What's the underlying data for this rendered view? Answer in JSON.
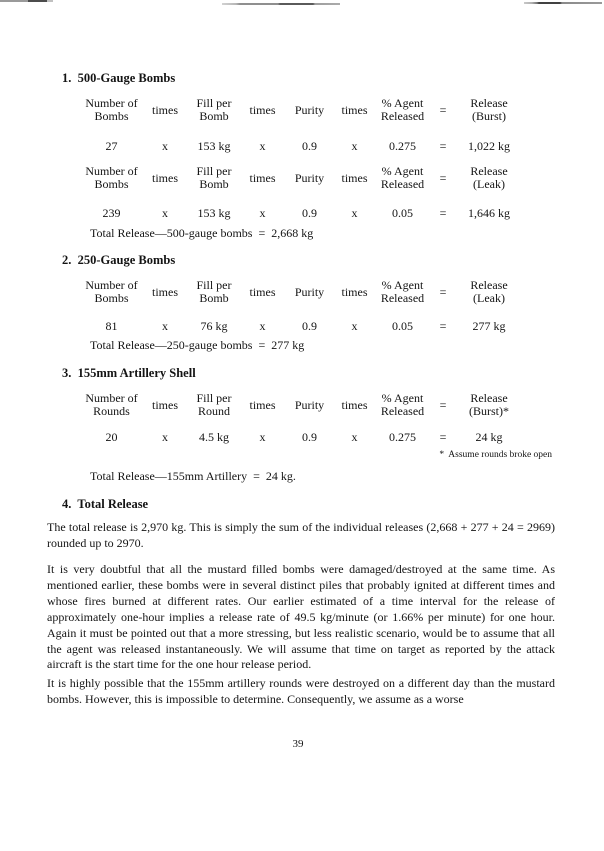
{
  "page_number": "39",
  "sections": [
    {
      "heading": "1.  500-Gauge Bombs",
      "tables": [
        {
          "headers": [
            "Number of Bombs",
            "times",
            "Fill per Bomb",
            "times",
            "Purity",
            "times",
            "% Agent Released",
            "=",
            "Release (Burst)"
          ],
          "values": [
            "27",
            "x",
            "153 kg",
            "x",
            "0.9",
            "x",
            "0.275",
            "=",
            "1,022 kg"
          ]
        },
        {
          "headers": [
            "Number of Bombs",
            "times",
            "Fill per Bomb",
            "times",
            "Purity",
            "times",
            "% Agent Released",
            "=",
            "Release (Leak)"
          ],
          "values": [
            "239",
            "x",
            "153 kg",
            "x",
            "0.9",
            "x",
            "0.05",
            "=",
            "1,646 kg"
          ]
        }
      ],
      "total": "Total Release—500-gauge bombs  =  2,668 kg"
    },
    {
      "heading": "2.  250-Gauge Bombs",
      "tables": [
        {
          "headers": [
            "Number of Bombs",
            "times",
            "Fill per Bomb",
            "times",
            "Purity",
            "times",
            "% Agent Released",
            "=",
            "Release (Leak)"
          ],
          "values": [
            "81",
            "x",
            "76 kg",
            "x",
            "0.9",
            "x",
            "0.05",
            "=",
            "277 kg"
          ]
        }
      ],
      "total": "Total Release—250-gauge bombs  =  277 kg"
    },
    {
      "heading": "3.  155mm Artillery Shell",
      "tables": [
        {
          "headers": [
            "Number of Rounds",
            "times",
            "Fill per Round",
            "times",
            "Purity",
            "times",
            "% Agent Released",
            "=",
            "Release (Burst)*"
          ],
          "values": [
            "20",
            "x",
            "4.5 kg",
            "x",
            "0.9",
            "x",
            "0.275",
            "=",
            "24 kg"
          ]
        }
      ],
      "footnote": "*  Assume rounds broke open",
      "total": "Total Release—155mm Artillery  =  24 kg."
    },
    {
      "heading": "4.  Total Release",
      "paragraphs": [
        "The total release is 2,970 kg.  This is simply the sum of the individual releases  (2,668  +  277  + 24  =  2969) rounded up to 2970.",
        "It is very doubtful that all the mustard filled bombs were damaged/destroyed at the same time. As mentioned earlier, these bombs were in several distinct piles that probably ignited at different times and whose fires burned at different rates.  Our earlier estimated of a time interval for the release of approximately one-hour implies a release rate of 49.5 kg/minute (or 1.66% per minute) for one hour.  Again it must be pointed out that a more stressing, but less realistic scenario, would be to assume that all the agent was released instantaneously. We will assume that time on target as reported by the attack aircraft is the start time for the one hour release period.",
        "It is highly possible that the 155mm artillery rounds were destroyed on a different day than the mustard bombs.  However, this is impossible to determine.  Consequently, we assume as a worse"
      ]
    }
  ]
}
